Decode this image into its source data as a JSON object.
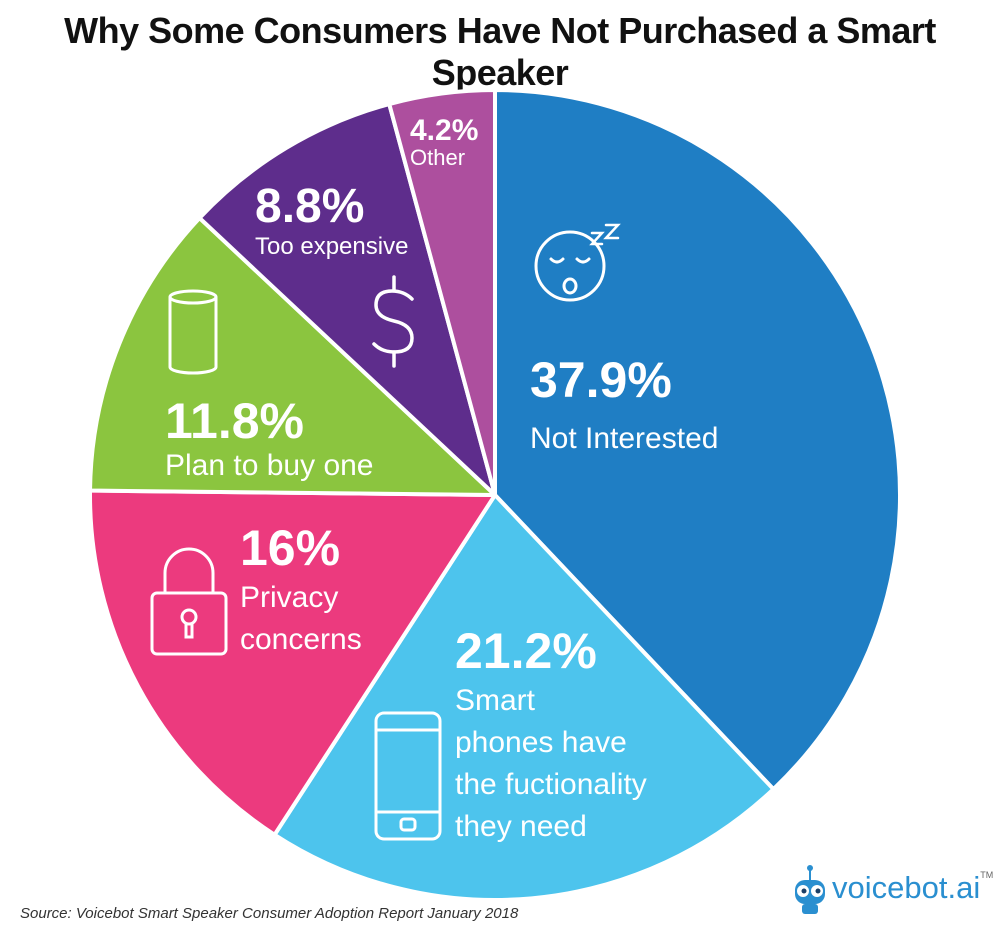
{
  "title": "Why Some Consumers Have Not Purchased a Smart Speaker",
  "source": "Source: Voicebot Smart Speaker Consumer Adoption Report January 2018",
  "logo": {
    "text": "voicebot.ai",
    "tm": "TM"
  },
  "chart_data": {
    "type": "pie",
    "title": "Why Some Consumers Have Not Purchased a Smart Speaker",
    "slices": [
      {
        "value": 37.9,
        "value_label": "37.9%",
        "label_lines": [
          "Not Interested"
        ],
        "color": "#1f7ec4",
        "icon": "sleeping-face-icon"
      },
      {
        "value": 21.2,
        "value_label": "21.2%",
        "label_lines": [
          "Smart",
          "phones have",
          "the fuctionality",
          "they need"
        ],
        "color": "#4dc4ed",
        "icon": "smartphone-icon"
      },
      {
        "value": 16,
        "value_label": "16%",
        "label_lines": [
          "Privacy",
          "concerns"
        ],
        "color": "#ec3a7e",
        "icon": "padlock-icon"
      },
      {
        "value": 11.8,
        "value_label": "11.8%",
        "label_lines": [
          "Plan to buy one"
        ],
        "color": "#8bc53f",
        "icon": "smart-speaker-icon"
      },
      {
        "value": 8.8,
        "value_label": "8.8%",
        "label_lines": [
          "Too expensive"
        ],
        "color": "#5e2d8c",
        "icon": "dollar-icon"
      },
      {
        "value": 4.2,
        "value_label": "4.2%",
        "label_lines": [
          "Other"
        ],
        "color": "#ad4f9e",
        "icon": ""
      }
    ]
  }
}
